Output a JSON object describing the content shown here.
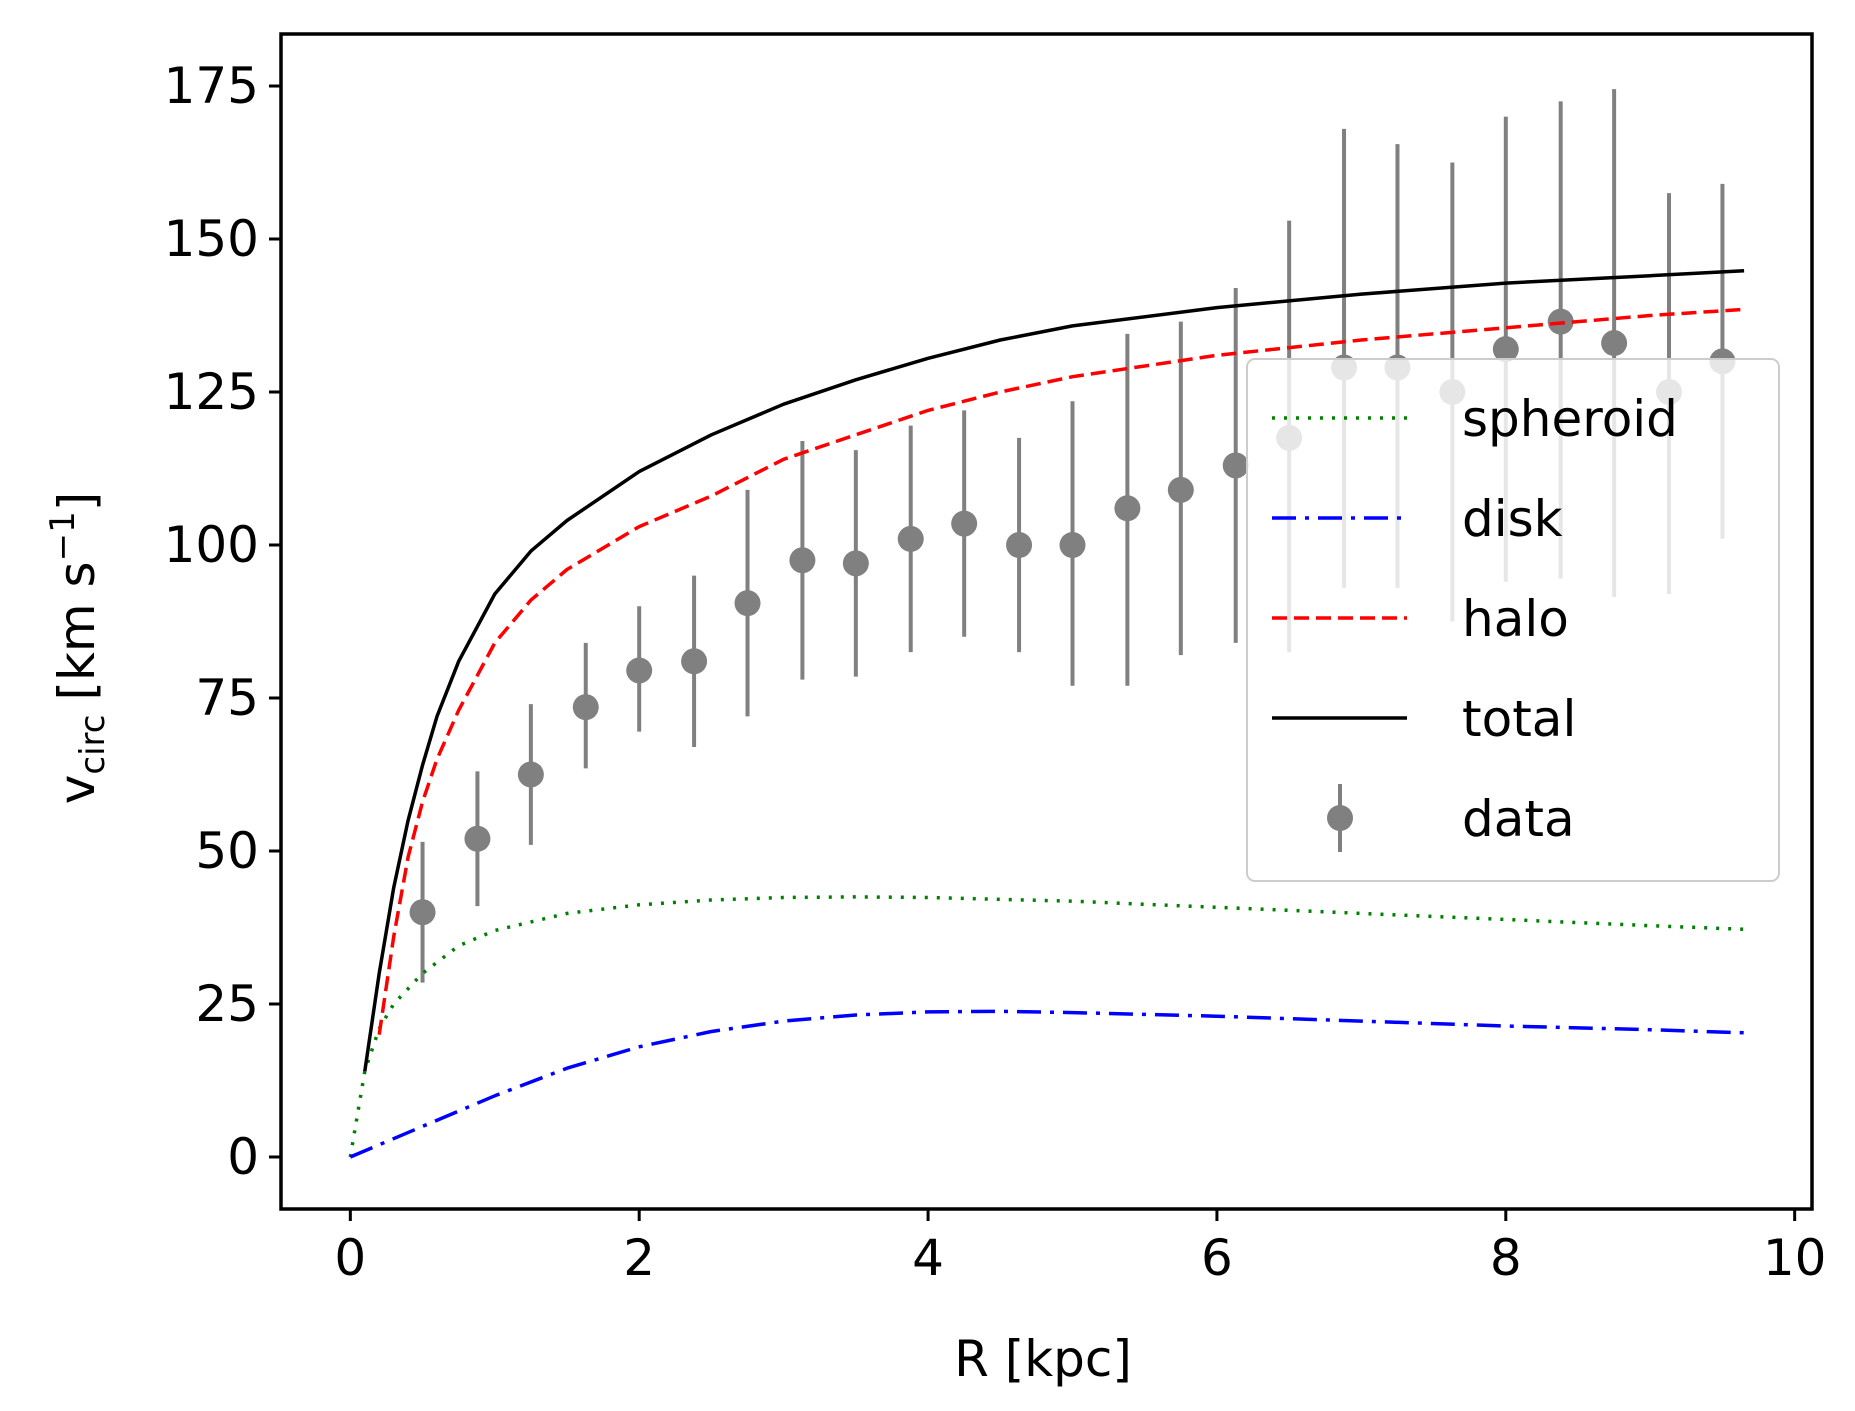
{
  "chart_data": {
    "type": "line",
    "xlabel": "R [kpc]",
    "ylabel": {
      "main": "v",
      "sub": "circ",
      "bracket_open": "[km s",
      "sup": "−1",
      "bracket_close": "]"
    },
    "xlim": [
      -0.48,
      10.12
    ],
    "ylim": [
      -8.5,
      183.5
    ],
    "xticks": [
      0,
      2,
      4,
      6,
      8,
      10
    ],
    "yticks": [
      0,
      25,
      50,
      75,
      100,
      125,
      150,
      175
    ],
    "grid": false,
    "legend_position": "center-right",
    "series": [
      {
        "name": "spheroid",
        "style": "dotted",
        "color": "#008000",
        "x": [
          0,
          0.1,
          0.2,
          0.3,
          0.5,
          0.75,
          1.0,
          1.5,
          2.0,
          2.5,
          3.0,
          3.5,
          4.0,
          5.0,
          6.0,
          7.0,
          8.0,
          9.0,
          9.65
        ],
        "y": [
          0,
          14,
          21,
          25,
          30,
          34.5,
          37,
          39.8,
          41.2,
          42,
          42.4,
          42.5,
          42.4,
          41.8,
          40.8,
          39.8,
          38.8,
          37.8,
          37.2
        ]
      },
      {
        "name": "disk",
        "style": "dashdot",
        "color": "#0000ff",
        "x": [
          0,
          0.5,
          1.0,
          1.5,
          2.0,
          2.5,
          3.0,
          3.5,
          4.0,
          4.5,
          5.0,
          6.0,
          7.0,
          8.0,
          9.0,
          9.65
        ],
        "y": [
          0,
          5,
          10,
          14.5,
          18,
          20.5,
          22.2,
          23.2,
          23.7,
          23.8,
          23.6,
          23,
          22.2,
          21.4,
          20.8,
          20.3
        ]
      },
      {
        "name": "halo",
        "style": "dashed",
        "color": "#ff0000",
        "x": [
          0.2,
          0.3,
          0.4,
          0.5,
          0.6,
          0.75,
          1.0,
          1.25,
          1.5,
          2.0,
          2.5,
          3.0,
          3.5,
          4.0,
          4.5,
          5.0,
          6.0,
          7.0,
          8.0,
          9.0,
          9.65
        ],
        "y": [
          20,
          36,
          49,
          58,
          65,
          73,
          84,
          91,
          96,
          103,
          108,
          114,
          118,
          122,
          125,
          127.5,
          131,
          133.5,
          135.5,
          137.5,
          138.5
        ]
      },
      {
        "name": "total",
        "style": "solid",
        "color": "#000000",
        "x": [
          0.1,
          0.2,
          0.3,
          0.4,
          0.5,
          0.6,
          0.75,
          1.0,
          1.25,
          1.5,
          2.0,
          2.5,
          3.0,
          3.5,
          4.0,
          4.5,
          5.0,
          6.0,
          7.0,
          8.0,
          9.0,
          9.65
        ],
        "y": [
          14,
          30,
          44,
          55,
          64,
          72,
          81,
          92,
          99,
          104,
          112,
          118,
          123,
          127,
          130.5,
          133.5,
          135.8,
          138.8,
          141,
          142.8,
          144,
          144.8
        ]
      }
    ],
    "errorbar_series": {
      "name": "data",
      "color": "#808080",
      "x": [
        0.5,
        0.88,
        1.25,
        1.63,
        2.0,
        2.38,
        2.75,
        3.13,
        3.5,
        3.88,
        4.25,
        4.63,
        5.0,
        5.38,
        5.75,
        6.13,
        6.5,
        6.88,
        7.25,
        7.63,
        8.0,
        8.38,
        8.75,
        9.13,
        9.5
      ],
      "y": [
        40,
        52,
        62.5,
        73.5,
        79.5,
        81,
        90.5,
        97.5,
        97,
        101,
        103.5,
        100,
        100,
        106,
        109,
        113,
        117.5,
        129,
        129,
        125,
        132,
        136.5,
        133,
        125,
        130
      ],
      "yerr_low": [
        11.5,
        11,
        11.5,
        10,
        10,
        14,
        18.5,
        19.5,
        18.5,
        18.5,
        18.5,
        17.5,
        23,
        29,
        27,
        29,
        35,
        36,
        36,
        37.5,
        38,
        42,
        41.5,
        33,
        29
      ],
      "yerr_high": [
        11.5,
        11,
        11.5,
        10.5,
        10.5,
        14,
        18.5,
        19.5,
        18.5,
        18.5,
        18.5,
        17.5,
        23.5,
        28.5,
        27.5,
        29,
        35.5,
        39,
        36.5,
        37.5,
        38,
        36,
        41.5,
        32.5,
        29
      ]
    }
  }
}
